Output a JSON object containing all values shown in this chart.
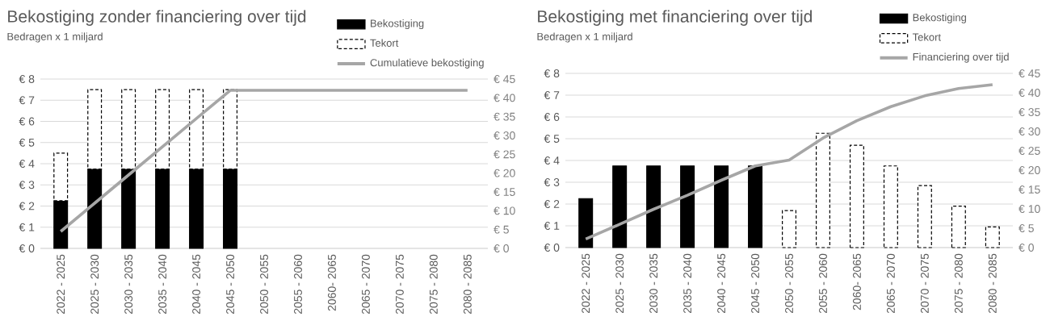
{
  "chart_data": [
    {
      "type": "bar",
      "title": "Bekostiging zonder financiering over tijd",
      "subtitle": "Bedragen x 1 miljard",
      "categories": [
        "2022 - 2025",
        "2025 - 2030",
        "2030 - 2035",
        "2035 - 2040",
        "2040 - 2045",
        "2045 - 2050",
        "2050 - 2055",
        "2055 - 2060",
        "2060- 2065",
        "2065 - 2070",
        "2070 - 2075",
        "2075 - 2080",
        "2080 - 2085"
      ],
      "stacked": true,
      "grid": "y",
      "legend": "top right",
      "ylim": [
        0,
        8
      ],
      "yticks": [
        {
          "value": 0,
          "label": "€ 0"
        },
        {
          "value": 1,
          "label": "€ 1"
        },
        {
          "value": 2,
          "label": "€ 2"
        },
        {
          "value": 3,
          "label": "€ 3"
        },
        {
          "value": 4,
          "label": "€ 4"
        },
        {
          "value": 5,
          "label": "€ 5"
        },
        {
          "value": 6,
          "label": "€ 6"
        },
        {
          "value": 7,
          "label": "€ 7"
        },
        {
          "value": 8,
          "label": "€ 8"
        }
      ],
      "y2lim": [
        0,
        45
      ],
      "y2ticks": [
        {
          "value": 0,
          "label": "€ 0"
        },
        {
          "value": 5,
          "label": "€ 5"
        },
        {
          "value": 10,
          "label": "€ 10"
        },
        {
          "value": 15,
          "label": "€ 15"
        },
        {
          "value": 20,
          "label": "€ 20"
        },
        {
          "value": 25,
          "label": "€ 25"
        },
        {
          "value": 30,
          "label": "€ 30"
        },
        {
          "value": 35,
          "label": "€ 35"
        },
        {
          "value": 40,
          "label": "€ 40"
        },
        {
          "value": 45,
          "label": "€ 45"
        }
      ],
      "series": [
        {
          "name": "Bekostiging",
          "color": "#000000",
          "values": [
            2.25,
            3.75,
            3.75,
            3.75,
            3.75,
            3.75,
            null,
            null,
            null,
            null,
            null,
            null,
            null
          ]
        },
        {
          "name": "Tekort",
          "color": "#ffffff",
          "line_style": "dashed",
          "values": [
            2.25,
            3.75,
            3.75,
            3.75,
            3.75,
            3.75,
            null,
            null,
            null,
            null,
            null,
            null,
            null
          ]
        },
        {
          "name": "Cumulatieve bekostiging",
          "type": "line",
          "axis": "y2",
          "color": "#a6a6a6",
          "values": [
            4.5,
            12,
            19.5,
            27,
            34.5,
            42,
            42,
            42,
            42,
            42,
            42,
            42,
            42
          ]
        }
      ]
    },
    {
      "type": "bar",
      "title": "Bekostiging met financiering over tijd",
      "subtitle": "Bedragen x 1 miljard",
      "categories": [
        "2022 - 2025",
        "2025 - 2030",
        "2030 - 2035",
        "2035 - 2040",
        "2040 - 2045",
        "2045 - 2050",
        "2050 - 2055",
        "2055 - 2060",
        "2060- 2065",
        "2065 - 2070",
        "2070 - 2075",
        "2075 - 2080",
        "2080 - 2085"
      ],
      "stacked": true,
      "grid": "y",
      "legend": "top right",
      "ylim": [
        0,
        8
      ],
      "yticks": [
        {
          "value": 0,
          "label": "€ 0"
        },
        {
          "value": 1,
          "label": "€ 1"
        },
        {
          "value": 2,
          "label": "€ 2"
        },
        {
          "value": 3,
          "label": "€ 3"
        },
        {
          "value": 4,
          "label": "€ 4"
        },
        {
          "value": 5,
          "label": "€ 5"
        },
        {
          "value": 6,
          "label": "€ 6"
        },
        {
          "value": 7,
          "label": "€ 7"
        },
        {
          "value": 8,
          "label": "€ 8"
        }
      ],
      "y2lim": [
        0,
        45
      ],
      "y2ticks": [
        {
          "value": 0,
          "label": "€ 0"
        },
        {
          "value": 5,
          "label": "€ 5"
        },
        {
          "value": 10,
          "label": "€ 10"
        },
        {
          "value": 15,
          "label": "€ 15"
        },
        {
          "value": 20,
          "label": "€ 20"
        },
        {
          "value": 25,
          "label": "€ 25"
        },
        {
          "value": 30,
          "label": "€ 30"
        },
        {
          "value": 35,
          "label": "€ 35"
        },
        {
          "value": 40,
          "label": "€ 40"
        },
        {
          "value": 45,
          "label": "€ 45"
        }
      ],
      "series": [
        {
          "name": "Bekostiging",
          "color": "#000000",
          "values": [
            2.25,
            3.75,
            3.75,
            3.75,
            3.75,
            3.75,
            null,
            null,
            null,
            null,
            null,
            null,
            null
          ]
        },
        {
          "name": "Tekort",
          "color": "#ffffff",
          "line_style": "dashed",
          "values": [
            null,
            null,
            null,
            null,
            null,
            null,
            1.7,
            5.25,
            4.7,
            3.75,
            2.85,
            1.9,
            0.95
          ]
        },
        {
          "name": "Financiering over tijd",
          "type": "line",
          "axis": "y2",
          "color": "#a6a6a6",
          "values": [
            2.2,
            6,
            9.9,
            13.5,
            17.4,
            21.1,
            22.6,
            28.3,
            32.8,
            36.4,
            39.2,
            41.1,
            42.1
          ]
        }
      ]
    }
  ]
}
